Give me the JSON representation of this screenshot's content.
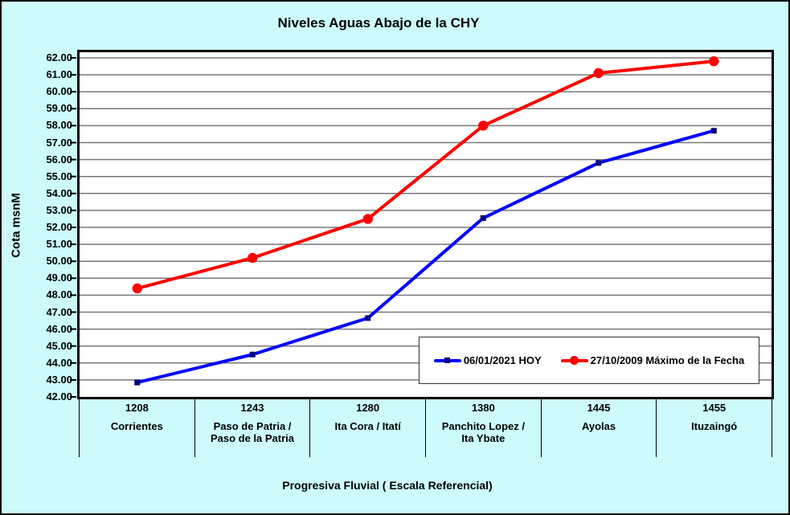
{
  "colors": {
    "background": "#CDFBFC",
    "plot_background": "#FFFFFF",
    "frame": "#000000",
    "gridline": "#787878",
    "series_hoy_line": "#0000FF",
    "series_hoy_marker": "#000080",
    "series_max_line": "#FF0000",
    "series_max_marker": "#FF0000"
  },
  "chart_data": {
    "type": "line",
    "title": "Niveles Aguas Abajo de la CHY",
    "xlabel": "Progresiva Fluvial ( Escala Referencial)",
    "ylabel": "Cota msnM",
    "ylim": [
      42,
      62.33
    ],
    "ytick_step": 1,
    "yticks": [
      "62.00",
      "61.00",
      "60.00",
      "59.00",
      "58.00",
      "57.00",
      "56.00",
      "55.00",
      "54.00",
      "53.00",
      "52.00",
      "51.00",
      "50.00",
      "49.00",
      "48.00",
      "47.00",
      "46.00",
      "45.00",
      "44.00",
      "43.00",
      "42.00"
    ],
    "grid": true,
    "legend_position": "inside-bottom-right",
    "categories": [
      {
        "km": "1208",
        "name_lines": [
          "Corrientes"
        ]
      },
      {
        "km": "1243",
        "name_lines": [
          "Paso de Patria /",
          "Paso de la Patria"
        ]
      },
      {
        "km": "1280",
        "name_lines": [
          "Ita Cora / Itatí"
        ]
      },
      {
        "km": "1380",
        "name_lines": [
          "Panchito Lopez /",
          "Ita Ybate"
        ]
      },
      {
        "km": "1445",
        "name_lines": [
          "Ayolas"
        ]
      },
      {
        "km": "1455",
        "name_lines": [
          "Ituzaingó"
        ]
      }
    ],
    "series": [
      {
        "name": "06/01/2021 HOY",
        "color": "#0000FF",
        "marker": "square",
        "marker_color": "#000080",
        "values": [
          42.85,
          44.5,
          46.65,
          52.55,
          55.8,
          57.7
        ]
      },
      {
        "name": "27/10/2009 Máximo de la Fecha",
        "color": "#FF0000",
        "marker": "circle",
        "marker_color": "#FF0000",
        "values": [
          48.4,
          50.2,
          52.5,
          58.0,
          61.1,
          61.8
        ]
      }
    ]
  }
}
